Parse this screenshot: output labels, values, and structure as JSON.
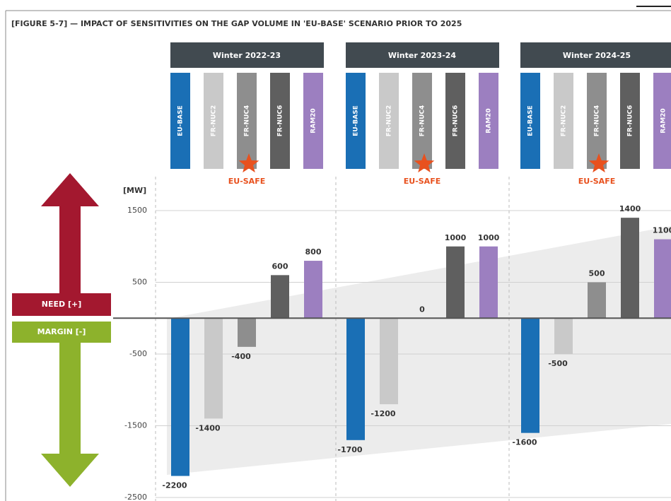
{
  "chart_data": {
    "type": "bar",
    "title": "[FIGURE 5-7] — IMPACT OF SENSITIVITIES ON THE GAP VOLUME IN 'EU-BASE' SCENARIO PRIOR TO 2025",
    "y_label": "[MW]",
    "categories": [
      "EU-BASE",
      "FR-NUC2",
      "FR-NUC4",
      "FR-NUC6",
      "RAM20"
    ],
    "colors": [
      "#1a6fb5",
      "#c9c9c9",
      "#8e8e8e",
      "#5f5f5f",
      "#9c7fc0"
    ],
    "series": [
      {
        "name": "Winter 2022-23",
        "values": [
          -2200,
          -1400,
          -400,
          600,
          800
        ]
      },
      {
        "name": "Winter 2023-24",
        "values": [
          -1700,
          -1200,
          0,
          1000,
          1000
        ]
      },
      {
        "name": "Winter 2024-25",
        "values": [
          -1600,
          -500,
          500,
          1400,
          1100
        ]
      }
    ],
    "annotation": "EU-SAFE",
    "need_label": "NEED [+]",
    "margin_label": "MARGIN [-]",
    "ylim": [
      -2500,
      1500
    ],
    "yticks": [
      1500,
      500,
      -500,
      -1500,
      -2500
    ],
    "grid": true
  }
}
